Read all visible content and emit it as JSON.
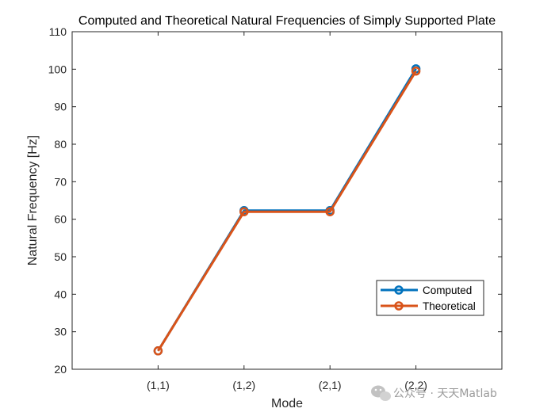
{
  "chart_data": {
    "type": "line",
    "title": "Computed and Theoretical Natural Frequencies of Simply Supported Plate",
    "xlabel": "Mode",
    "ylabel": "Natural Frequency [Hz]",
    "categories": [
      "(1,1)",
      "(1,2)",
      "(2,1)",
      "(2,2)"
    ],
    "ylim": [
      20,
      110
    ],
    "yticks": [
      20,
      30,
      40,
      50,
      60,
      70,
      80,
      90,
      100,
      110
    ],
    "grid": false,
    "legend_position": "bottom-right",
    "series": [
      {
        "name": "Computed",
        "color": "#0072bd",
        "marker": "circle",
        "values": [
          24.9,
          62.3,
          62.3,
          100.1
        ]
      },
      {
        "name": "Theoretical",
        "color": "#d95319",
        "marker": "circle",
        "values": [
          24.9,
          62.0,
          62.0,
          99.5
        ]
      }
    ]
  },
  "watermark": {
    "icon": "wechat-icon",
    "text": "公众号 · 天天Matlab"
  }
}
